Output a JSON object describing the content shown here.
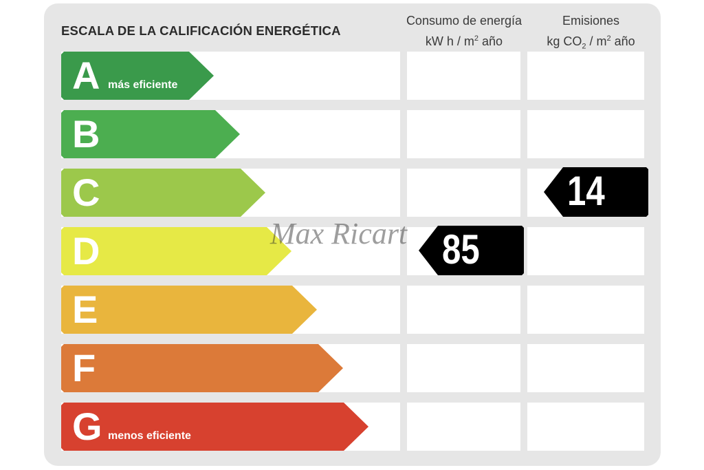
{
  "title": "ESCALA DE LA CALIFICACIÓN ENERGÉTICA",
  "columns": {
    "consumo": {
      "line1": "Consumo de energía",
      "unit_a": "kW h  / m",
      "unit_sup": "2",
      "unit_b": " año"
    },
    "emisiones": {
      "line1": "Emisiones",
      "unit_a": "kg CO",
      "unit_sub": "2",
      "unit_mid": "  / m",
      "unit_sup": "2",
      "unit_b": " año"
    }
  },
  "ratings": [
    {
      "letter": "A",
      "sublabel": "más eficiente",
      "color": "#3a9a4b"
    },
    {
      "letter": "B",
      "sublabel": "",
      "color": "#4cae50"
    },
    {
      "letter": "C",
      "sublabel": "",
      "color": "#9cc84b"
    },
    {
      "letter": "D",
      "sublabel": "",
      "color": "#e6e946"
    },
    {
      "letter": "E",
      "sublabel": "",
      "color": "#e9b53d"
    },
    {
      "letter": "F",
      "sublabel": "",
      "color": "#dc7a39"
    },
    {
      "letter": "G",
      "sublabel": "menos eficiente",
      "color": "#d7412f"
    }
  ],
  "consumo_value": {
    "value": "85",
    "rating": "D"
  },
  "emisiones_value": {
    "value": "14",
    "rating": "C"
  },
  "watermark": "Max Ricart"
}
